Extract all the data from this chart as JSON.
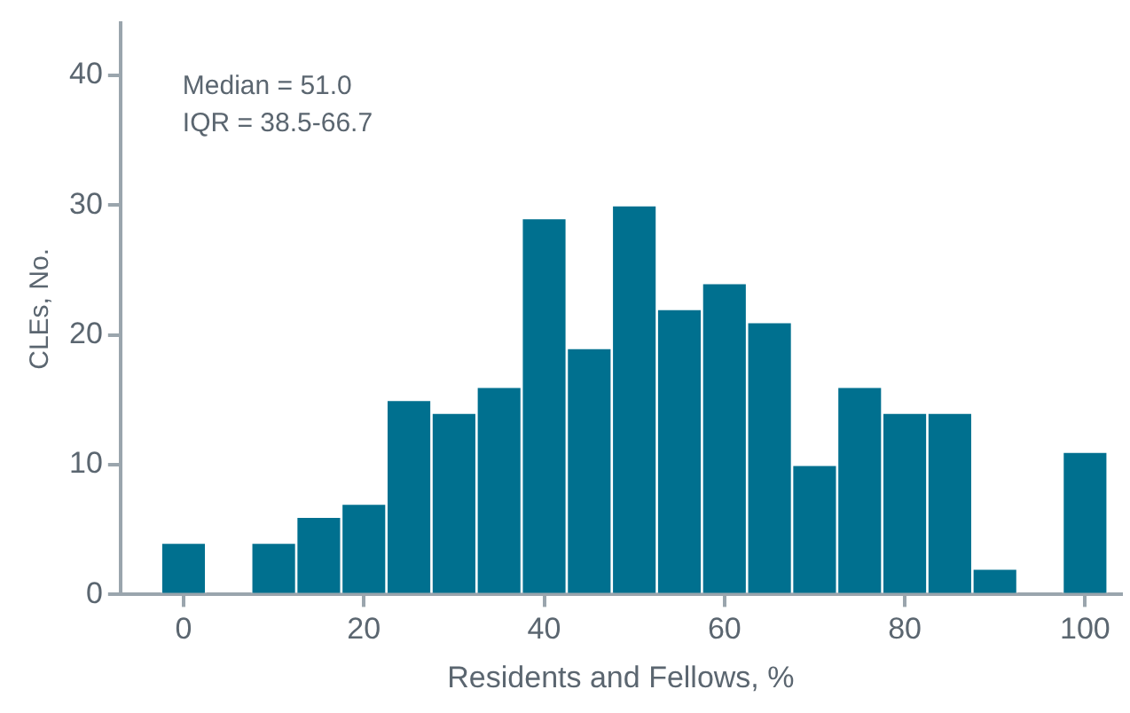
{
  "chart_data": {
    "type": "histogram",
    "xlabel": "Residents and Fellows, %",
    "ylabel": "CLEs, No.",
    "bins": [
      -2.5,
      2.5,
      7.5,
      12.5,
      17.5,
      22.5,
      27.5,
      32.5,
      37.5,
      42.5,
      47.5,
      52.5,
      57.5,
      62.5,
      67.5,
      72.5,
      77.5,
      82.5,
      87.5,
      92.5,
      97.5,
      102.5
    ],
    "values": [
      4,
      0,
      4,
      6,
      7,
      15,
      14,
      16,
      29,
      19,
      30,
      22,
      24,
      21,
      10,
      16,
      14,
      14,
      2,
      0,
      11
    ],
    "color": "#00708f",
    "xlim": [
      -7,
      104
    ],
    "xticks": [
      0,
      20,
      40,
      60,
      80,
      100
    ],
    "ylim": [
      0,
      44
    ],
    "yticks": [
      0,
      10,
      20,
      30,
      40
    ],
    "grid": false,
    "annotations": [
      "Median = 51.0",
      "IQR = 38.5-66.7"
    ]
  }
}
